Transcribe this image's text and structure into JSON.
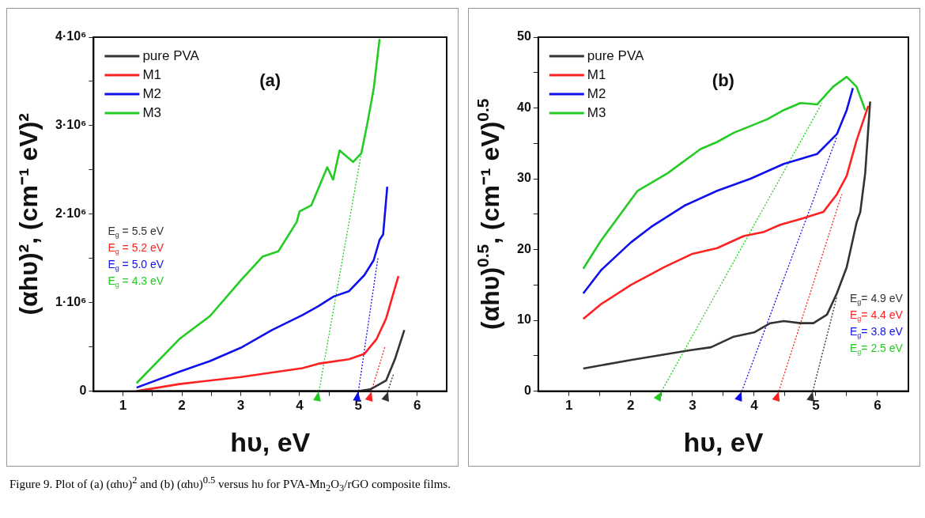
{
  "chart_data": [
    {
      "type": "line",
      "title": "(a)",
      "xlabel": "hυ, eV",
      "ylabel": "(αhυ)², (cm⁻¹ eV)²",
      "xlim": [
        0.5,
        6.5
      ],
      "xticks": [
        1,
        {
          "value": 1.5,
          "label": null
        },
        2,
        {
          "value": 2.5,
          "label": null
        },
        3,
        {
          "value": 3.5,
          "label": null
        },
        4,
        {
          "value": 4.5,
          "label": null
        },
        5,
        {
          "value": 5.5,
          "label": null
        },
        6
      ],
      "ylim": [
        0,
        4000000
      ],
      "yticks": [
        {
          "value": 0,
          "label": "0"
        },
        {
          "value": 500000,
          "label": null
        },
        {
          "value": 1000000,
          "label": "1·10⁶"
        },
        {
          "value": 1500000,
          "label": null
        },
        {
          "value": 2000000,
          "label": "2·10⁶"
        },
        {
          "value": 2500000,
          "label": null
        },
        {
          "value": 3000000,
          "label": "3·10⁶"
        },
        {
          "value": 3500000,
          "label": null
        },
        {
          "value": 4000000,
          "label": "4·10⁶"
        }
      ],
      "grid": false,
      "legend": "top left",
      "marker": "none",
      "annotations": [
        "E$_{g}$ = 5.5 eV",
        "E$_{g}$ = 5.2 eV",
        "E$_{g}$ = 5.0 eV",
        "E$_{g}$ = 4.3 eV"
      ],
      "series": [
        {
          "name": "pure PVA",
          "color": "#333333",
          "x": [
            1.23,
            2,
            3,
            4,
            5,
            5.2,
            5.31,
            5.47,
            5.62,
            5.78
          ],
          "values": [
            0,
            0,
            0,
            0,
            0,
            20000,
            60000,
            120000,
            360000,
            690000
          ]
        },
        {
          "name": "M1",
          "color": "#ff2020",
          "x": [
            1.23,
            1.96,
            3,
            4.05,
            4.32,
            4.84,
            5.1,
            5.31,
            5.47,
            5.6,
            5.68
          ],
          "values": [
            0,
            80000,
            160000,
            260000,
            310000,
            360000,
            420000,
            590000,
            820000,
            1120000,
            1300000
          ]
        },
        {
          "name": "M2",
          "color": "#1010ee",
          "x": [
            1.23,
            1.96,
            2.48,
            3,
            3.53,
            4.05,
            4.32,
            4.58,
            4.84,
            5.1,
            5.26,
            5.36,
            5.42,
            5.49
          ],
          "values": [
            40000,
            220000,
            340000,
            490000,
            690000,
            860000,
            960000,
            1070000,
            1130000,
            1310000,
            1480000,
            1710000,
            1770000,
            2310000
          ]
        },
        {
          "name": "M3",
          "color": "#22cc22",
          "x": [
            1.23,
            1.96,
            2.48,
            3,
            3.37,
            3.64,
            3.95,
            4,
            4.2,
            4.47,
            4.57,
            4.68,
            4.91,
            5.05,
            5.15,
            5.26,
            5.36
          ],
          "values": [
            90000,
            590000,
            850000,
            1250000,
            1520000,
            1580000,
            1910000,
            2030000,
            2100000,
            2530000,
            2390000,
            2720000,
            2590000,
            2690000,
            3020000,
            3420000,
            3980000
          ]
        },
        {
          "line_style": "dotted",
          "color": "#333333",
          "x": [
            5.5,
            5.6
          ],
          "values": [
            0,
            200000
          ]
        },
        {
          "line_style": "dotted",
          "color": "#ff2020",
          "x": [
            5.22,
            5.45
          ],
          "values": [
            0,
            500000
          ]
        },
        {
          "line_style": "dotted",
          "color": "#1010ee",
          "x": [
            5.0,
            5.33
          ],
          "values": [
            0,
            1500000
          ]
        },
        {
          "line_style": "dotted",
          "color": "#22cc22",
          "x": [
            4.33,
            5.05
          ],
          "values": [
            0,
            2690000
          ]
        }
      ]
    },
    {
      "type": "line",
      "title": "(b)",
      "xlabel": "hυ, eV",
      "ylabel": "(αhυ)$^{0.5}$, (cm⁻¹ eV)$^{0.5}$",
      "xlim": [
        0.5,
        6.5
      ],
      "xticks": [
        1,
        {
          "value": 1.5,
          "label": null
        },
        2,
        {
          "value": 2.5,
          "label": null
        },
        3,
        {
          "value": 3.5,
          "label": null
        },
        4,
        {
          "value": 4.5,
          "label": null
        },
        5,
        {
          "value": 5.5,
          "label": null
        },
        6
      ],
      "ylim": [
        0,
        50
      ],
      "yticks": [
        0,
        {
          "value": 5,
          "label": null
        },
        10,
        {
          "value": 15,
          "label": null
        },
        20,
        {
          "value": 25,
          "label": null
        },
        30,
        {
          "value": 35,
          "label": null
        },
        40,
        {
          "value": 45,
          "label": null
        },
        50
      ],
      "grid": false,
      "legend": "top left",
      "marker": "none",
      "annotations": [
        "E$_{g}$= 4.9 eV",
        "E$_{g}$= 4.4 eV",
        "E$_{g}$= 3.8 eV",
        "E$_{g}$= 2.5 eV"
      ],
      "series": [
        {
          "name": "pure PVA",
          "color": "#333333",
          "x": [
            1.23,
            2,
            2.97,
            3.3,
            3.67,
            4,
            4.26,
            4.48,
            4.75,
            4.96,
            5.18,
            5.34,
            5.5,
            5.66,
            5.72,
            5.8,
            5.88
          ],
          "values": [
            3.2,
            4.4,
            5.8,
            6.2,
            7.7,
            8.3,
            9.6,
            9.9,
            9.6,
            9.6,
            10.8,
            13.8,
            17.5,
            23.8,
            25.3,
            30.8,
            40.9
          ]
        },
        {
          "name": "M1",
          "color": "#ff2020",
          "x": [
            1.23,
            1.52,
            2,
            2.54,
            3,
            3.4,
            3.83,
            4.16,
            4.42,
            4.75,
            5.12,
            5.34,
            5.5,
            5.66,
            5.85
          ],
          "values": [
            10.2,
            12.3,
            15,
            17.5,
            19.4,
            20.2,
            21.9,
            22.5,
            23.5,
            24.3,
            25.3,
            27.8,
            30.4,
            35.4,
            40.3
          ]
        },
        {
          "name": "M2",
          "color": "#1010ee",
          "x": [
            1.23,
            1.52,
            2,
            2.33,
            2.87,
            3.4,
            3.94,
            4.48,
            5.02,
            5.34,
            5.5,
            5.6
          ],
          "values": [
            13.8,
            17.1,
            21,
            23.2,
            26.2,
            28.3,
            30,
            32.1,
            33.5,
            36.3,
            39.7,
            42.8
          ]
        },
        {
          "name": "M3",
          "color": "#22cc22",
          "x": [
            1.23,
            1.52,
            1.79,
            2.11,
            2.6,
            3.13,
            3.4,
            3.67,
            4.21,
            4.48,
            4.75,
            5.02,
            5.28,
            5.5,
            5.66,
            5.8
          ],
          "values": [
            17.3,
            21.3,
            24.5,
            28.3,
            30.8,
            34.2,
            35.2,
            36.5,
            38.4,
            39.7,
            40.7,
            40.5,
            43,
            44.4,
            43,
            39.7
          ]
        },
        {
          "line_style": "dotted",
          "color": "#333333",
          "x": [
            4.95,
            5.34
          ],
          "values": [
            0,
            13.3
          ]
        },
        {
          "line_style": "dotted",
          "color": "#ff2020",
          "x": [
            4.4,
            5.42
          ],
          "values": [
            0,
            27.8
          ]
        },
        {
          "line_style": "dotted",
          "color": "#1010ee",
          "x": [
            3.8,
            5.34
          ],
          "values": [
            0,
            35.9
          ]
        },
        {
          "line_style": "dotted",
          "color": "#22cc22",
          "x": [
            2.5,
            5.1
          ],
          "values": [
            0,
            40.7
          ]
        }
      ]
    },
    {
      "type": "other",
      "annotations": [
        "Figure 9. Plot of (a) (αhυ)$^{2}$ and (b) (αhυ)$^{0.5}$ versus hυ for PVA-Mn$_{2}$O$_{3}$/rGO composite films."
      ]
    }
  ]
}
